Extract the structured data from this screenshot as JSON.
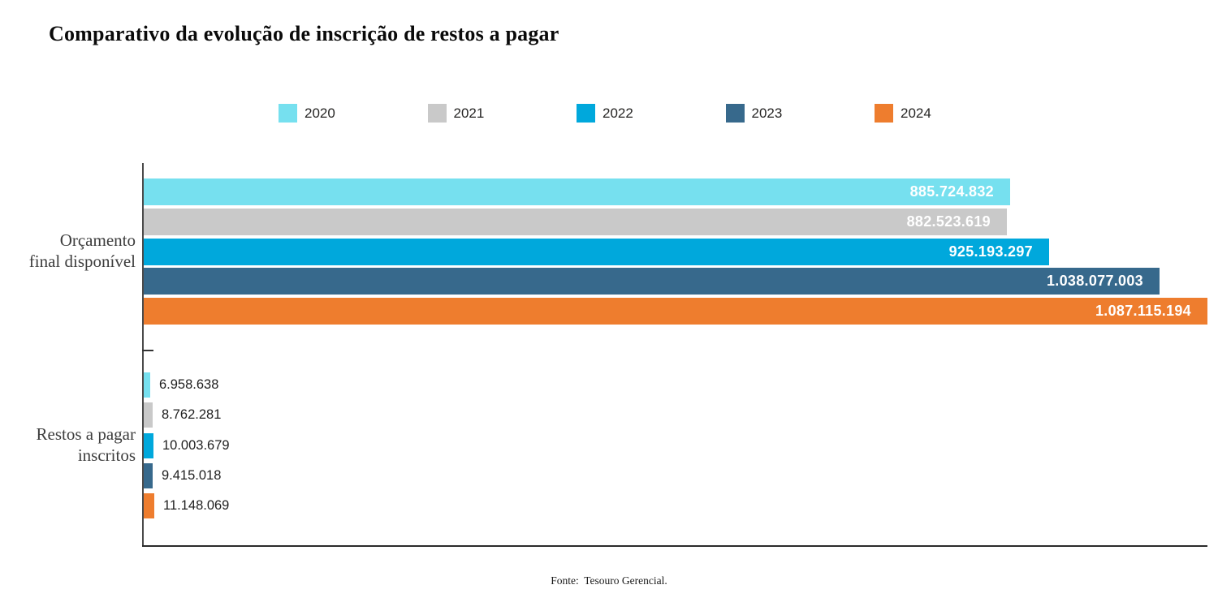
{
  "title": "Comparativo da evolução de inscrição de restos a pagar",
  "footer": {
    "source": "Fonte:  Tesouro Gerencial."
  },
  "legend": {
    "position": "top",
    "items": [
      {
        "label": "2020",
        "color": "#76E0EF"
      },
      {
        "label": "2021",
        "color": "#C9C9C9"
      },
      {
        "label": "2022",
        "color": "#00A8DC"
      },
      {
        "label": "2023",
        "color": "#37698C"
      },
      {
        "label": "2024",
        "color": "#EE7D2E"
      }
    ]
  },
  "axis": {
    "category_lines": [
      [
        "Orçamento",
        "final disponível"
      ],
      [
        "Restos a pagar",
        "inscritos"
      ]
    ]
  },
  "chart_data": {
    "type": "bar",
    "orientation": "horizontal",
    "title": "Comparativo da evolução de inscrição de restos a pagar",
    "categories": [
      "Orçamento final disponível",
      "Restos a pagar inscritos"
    ],
    "series": [
      {
        "name": "2020",
        "color": "#76E0EF",
        "values": [
          885724832,
          6958638
        ],
        "labels": [
          "885.724.832",
          "6.958.638"
        ]
      },
      {
        "name": "2021",
        "color": "#C9C9C9",
        "values": [
          882523619,
          8762281
        ],
        "labels": [
          "882.523.619",
          "8.762.281"
        ]
      },
      {
        "name": "2022",
        "color": "#00A8DC",
        "values": [
          925193297,
          10003679
        ],
        "labels": [
          "925.193.297",
          "10.003.679"
        ]
      },
      {
        "name": "2023",
        "color": "#37698C",
        "values": [
          1038077003,
          9415018
        ],
        "labels": [
          "1.038.077.003",
          "9.415.018"
        ]
      },
      {
        "name": "2024",
        "color": "#EE7D2E",
        "values": [
          1087115194,
          11148069
        ],
        "labels": [
          "1.087.115.194",
          "11.148.069"
        ]
      }
    ],
    "xlim": [
      0,
      1087115194
    ],
    "xlabel": "",
    "ylabel": "",
    "grid": false,
    "legend_position": "top",
    "value_label_style": {
      "group_0": "inside-white",
      "group_1": "outside-dark"
    },
    "source_note": "Fonte:  Tesouro Gerencial."
  }
}
